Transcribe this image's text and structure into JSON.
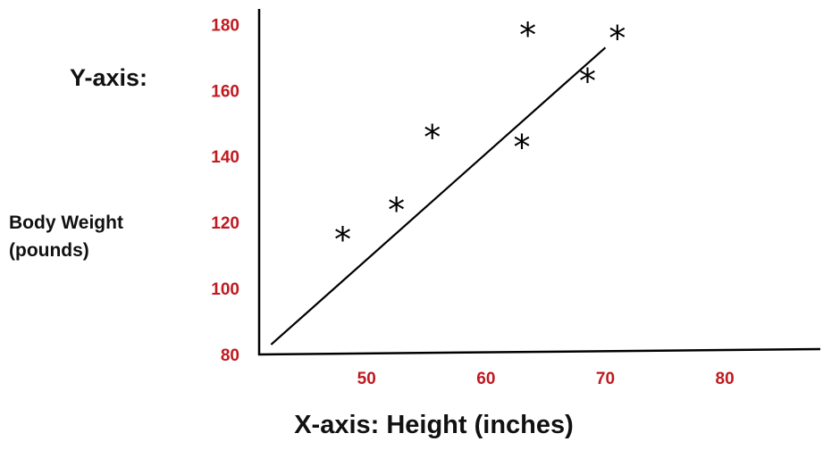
{
  "chart_data": {
    "type": "scatter",
    "title": "",
    "ylabel_heading": "Y-axis:",
    "ylabel_line1": "Body Weight",
    "ylabel_line2": "(pounds)",
    "xlabel": "X-axis: Height (inches)",
    "xlim": [
      41,
      88
    ],
    "ylim": [
      80,
      182
    ],
    "x_ticks": [
      50,
      60,
      70,
      80
    ],
    "y_ticks": [
      80,
      100,
      120,
      140,
      160,
      180
    ],
    "tick_color": "#c0191f",
    "marker": "*",
    "points": [
      {
        "x": 48,
        "y": 115
      },
      {
        "x": 52.5,
        "y": 124
      },
      {
        "x": 55.5,
        "y": 146
      },
      {
        "x": 63,
        "y": 143
      },
      {
        "x": 63.5,
        "y": 177
      },
      {
        "x": 68.5,
        "y": 163
      },
      {
        "x": 71,
        "y": 176
      }
    ],
    "trend_line": {
      "x": [
        42,
        70
      ],
      "y": [
        83,
        173
      ]
    },
    "grid": false,
    "legend": "none"
  }
}
